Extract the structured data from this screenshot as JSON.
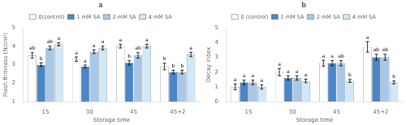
{
  "chart_data": [
    {
      "type": "bar",
      "title": "a",
      "xlabel": "Storage time",
      "ylabel": "Flesh firmness (N/cm²)",
      "categories": [
        "15",
        "30",
        "45",
        "45+2"
      ],
      "series": [
        {
          "name": "0(control)",
          "color": "#ffffff",
          "values": [
            3.5,
            3.3,
            4.0,
            2.9
          ],
          "errors": [
            0.15,
            0.12,
            0.1,
            0.18
          ],
          "letters": [
            "ab",
            "a",
            "a",
            "b"
          ]
        },
        {
          "name": "1 mM SA",
          "color": "#4a86c8",
          "values": [
            3.0,
            2.9,
            3.1,
            2.6
          ],
          "errors": [
            0.1,
            0.08,
            0.12,
            0.1
          ],
          "letters": [
            "b",
            "a",
            "b",
            "b"
          ]
        },
        {
          "name": "2 mM SA",
          "color": "#a8c8e8",
          "values": [
            3.9,
            3.7,
            3.5,
            2.6
          ],
          "errors": [
            0.1,
            0.1,
            0.15,
            0.1
          ],
          "letters": [
            "ab",
            "a",
            "ab",
            "b"
          ]
        },
        {
          "name": "4 mM SA",
          "color": "#d0e8f8",
          "values": [
            4.1,
            3.9,
            4.0,
            3.55
          ],
          "errors": [
            0.08,
            0.1,
            0.1,
            0.12
          ],
          "letters": [
            "a",
            "a",
            "a",
            "a"
          ]
        }
      ],
      "ylim": [
        1,
        5
      ],
      "yticks": [
        1,
        2,
        3,
        4,
        5
      ],
      "grid": false,
      "legend": "top"
    },
    {
      "type": "bar",
      "title": "b",
      "xlabel": "Storage time",
      "ylabel": "Decay index",
      "categories": [
        "15",
        "30",
        "45",
        "45+2"
      ],
      "series": [
        {
          "name": "0 (control)",
          "color": "#ffffff",
          "values": [
            1.0,
            2.0,
            2.6,
            3.7
          ],
          "errors": [
            0.2,
            0.25,
            0.2,
            0.35
          ],
          "letters": [
            "a",
            "a",
            "a",
            "a"
          ]
        },
        {
          "name": "1 mM SA",
          "color": "#4a86c8",
          "values": [
            1.3,
            1.6,
            2.6,
            3.0
          ],
          "errors": [
            0.15,
            0.15,
            0.18,
            0.2
          ],
          "letters": [
            "a",
            "a",
            "a",
            "ab"
          ]
        },
        {
          "name": "2 mM SA",
          "color": "#a8c8e8",
          "values": [
            1.3,
            1.6,
            2.6,
            3.0
          ],
          "errors": [
            0.15,
            0.15,
            0.18,
            0.2
          ],
          "letters": [
            "a",
            "a",
            "ab",
            "ab"
          ]
        },
        {
          "name": "4 mM SA",
          "color": "#d0e8f8",
          "values": [
            1.0,
            1.4,
            1.4,
            1.3
          ],
          "errors": [
            0.15,
            0.12,
            0.1,
            0.1
          ],
          "letters": [
            "a",
            "a",
            "b",
            "b"
          ]
        }
      ],
      "ylim": [
        0,
        5
      ],
      "yticks": [
        0,
        1,
        2,
        3,
        4,
        5
      ],
      "grid": false,
      "legend": "top"
    }
  ]
}
